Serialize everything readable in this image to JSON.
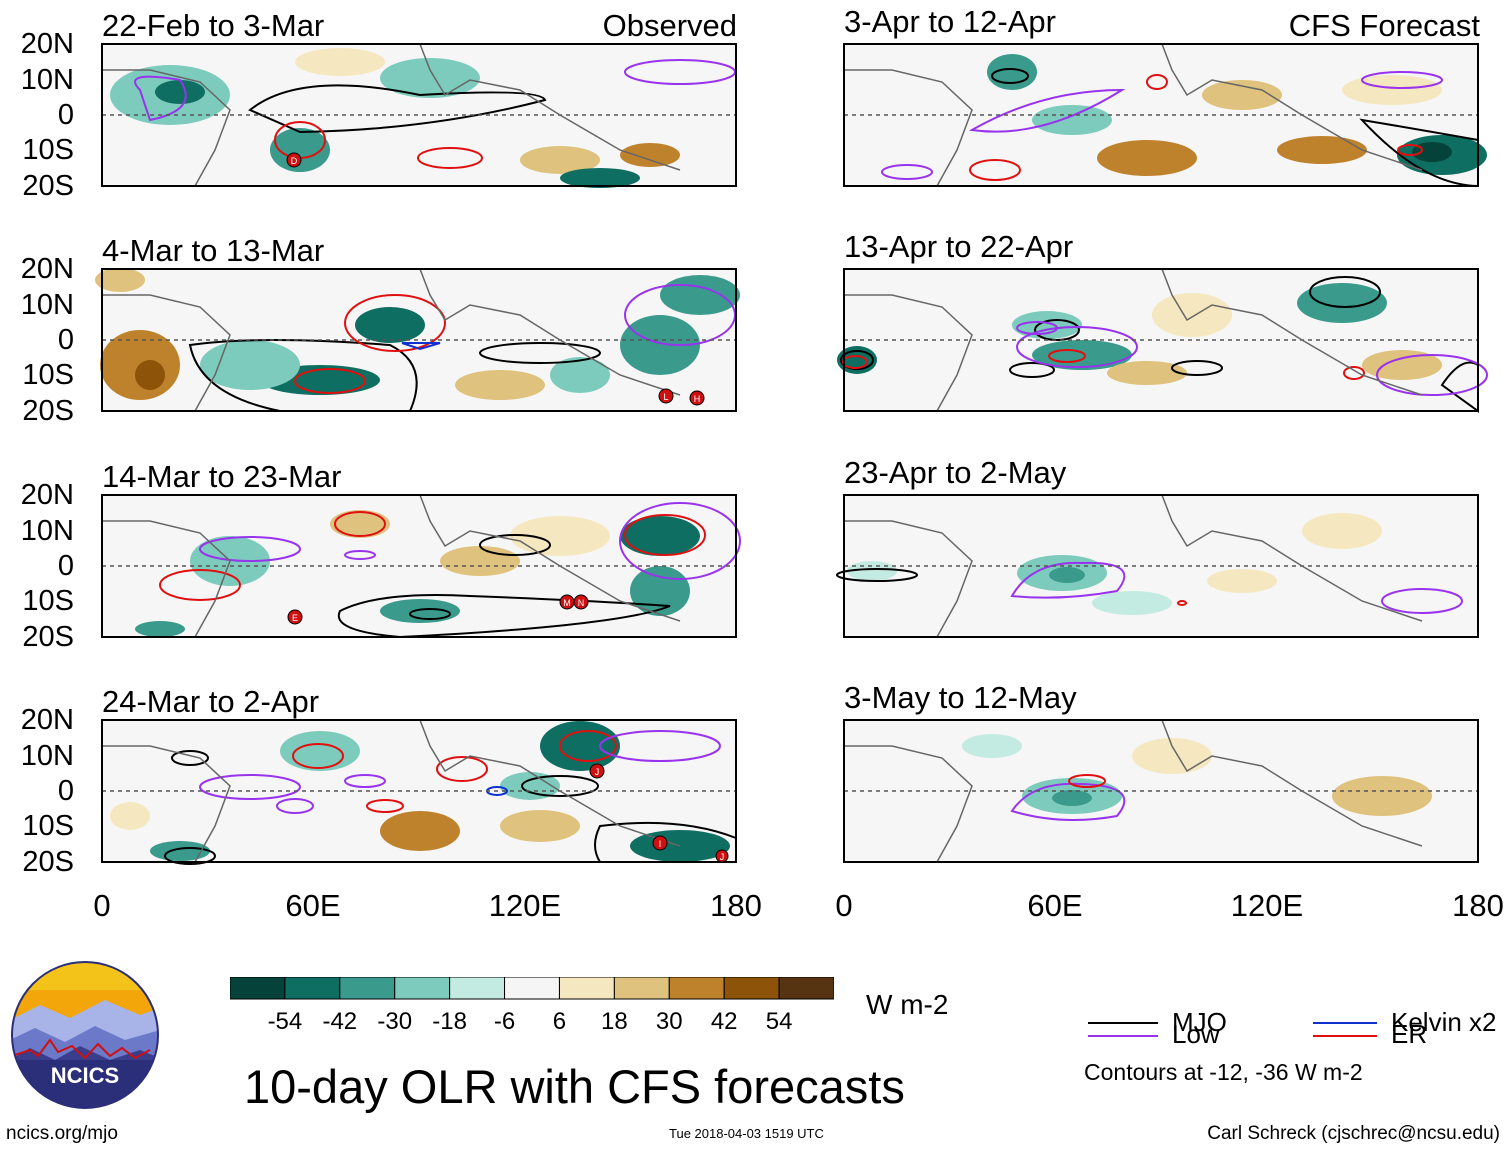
{
  "title": "10-day OLR with CFS forecasts",
  "footer": {
    "left": "ncics.org/mjo",
    "center": "Tue 2018-04-03 1519 UTC",
    "right": "Carl Schreck (cjschrec@ncsu.edu)"
  },
  "logo": {
    "text": "NCICS"
  },
  "columns": {
    "observed_label": "Observed",
    "forecast_label": "CFS Forecast"
  },
  "panels_observed": [
    {
      "title": "22-Feb to 3-Mar"
    },
    {
      "title": "4-Mar to 13-Mar"
    },
    {
      "title": "14-Mar to 23-Mar"
    },
    {
      "title": "24-Mar to 2-Apr"
    }
  ],
  "panels_forecast": [
    {
      "title": "3-Apr to 12-Apr"
    },
    {
      "title": "13-Apr to 22-Apr"
    },
    {
      "title": "23-Apr to 2-May"
    },
    {
      "title": "3-May to 12-May"
    }
  ],
  "axes": {
    "y_labels": [
      "20N",
      "10N",
      "0",
      "10S",
      "20S"
    ],
    "x_labels": [
      "0",
      "60E",
      "120E",
      "180"
    ]
  },
  "colorbar": {
    "unit": "W m-2",
    "colors": [
      "#05433a",
      "#0e6e61",
      "#3a9a8c",
      "#7ccbbc",
      "#c4ebe1",
      "#f5f5f5",
      "#f5e7bf",
      "#dfc27d",
      "#bf822c",
      "#8c5309",
      "#573411"
    ],
    "tick_labels": [
      "-54",
      "-42",
      "-30",
      "-18",
      "-6",
      "6",
      "18",
      "30",
      "42",
      "54"
    ]
  },
  "legend": {
    "items": [
      {
        "label": "MJO",
        "color": "#000000"
      },
      {
        "label": "Kelvin x2",
        "color": "#1030d0"
      },
      {
        "label": "Low",
        "color": "#9933ee"
      },
      {
        "label": "ER",
        "color": "#e01010"
      }
    ],
    "note": "Contours at -12, -36 W m-2"
  },
  "storm_markers": [
    {
      "panel": "obs-1",
      "letter": "D"
    },
    {
      "panel": "obs-2",
      "letter": "L"
    },
    {
      "panel": "obs-2",
      "letter": "H"
    },
    {
      "panel": "obs-3",
      "letter": "E"
    },
    {
      "panel": "obs-3",
      "letter": "M"
    },
    {
      "panel": "obs-3",
      "letter": "N"
    },
    {
      "panel": "obs-4",
      "letter": "J"
    },
    {
      "panel": "obs-4",
      "letter": "I"
    },
    {
      "panel": "obs-4",
      "letter": "J"
    }
  ]
}
